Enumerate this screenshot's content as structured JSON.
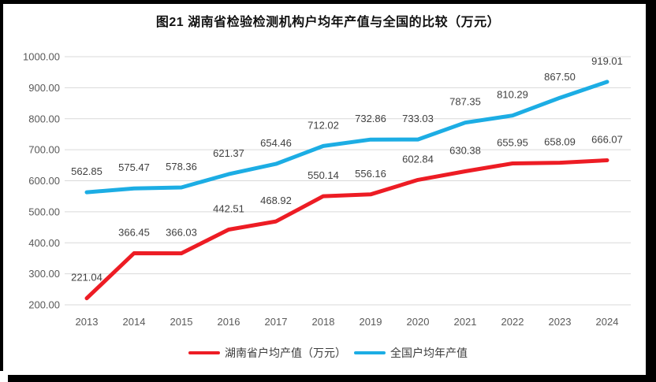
{
  "title": "图21 湖南省检验检测机构户均年产值与全国的比较（万元）",
  "chart_data": {
    "type": "line",
    "title": "图21 湖南省检验检测机构户均年产值与全国的比较（万元）",
    "categories": [
      "2013",
      "2014",
      "2015",
      "2016",
      "2017",
      "2018",
      "2019",
      "2020",
      "2021",
      "2022",
      "2023",
      "2024"
    ],
    "series": [
      {
        "name": "湖南省户均产值（万元）",
        "color": "#ed1c24",
        "values": [
          221.04,
          366.45,
          366.03,
          442.51,
          468.92,
          550.14,
          556.16,
          602.84,
          630.38,
          655.95,
          658.09,
          666.07
        ]
      },
      {
        "name": "全国户均年产值",
        "color": "#1cade4",
        "values": [
          562.85,
          575.47,
          578.36,
          621.37,
          654.46,
          712.02,
          732.86,
          733.03,
          787.35,
          810.29,
          867.5,
          919.01
        ]
      }
    ],
    "ylim": [
      200,
      1000
    ],
    "ytick_step": 100,
    "yticks": [
      "1000.00",
      "900.00",
      "800.00",
      "700.00",
      "600.00",
      "500.00",
      "400.00",
      "300.00",
      "200.00"
    ],
    "grid": true,
    "data_labels": true,
    "legend_position": "bottom",
    "gridline_color": "#d9d9d9",
    "axis_label_color": "#595959",
    "data_label_color": "#404040",
    "frame_border_color": "#000000",
    "background_color": "#ffffff"
  },
  "legend": {
    "items": [
      {
        "label": "湖南省户均产值（万元）"
      },
      {
        "label": "全国户均年产值"
      }
    ]
  }
}
